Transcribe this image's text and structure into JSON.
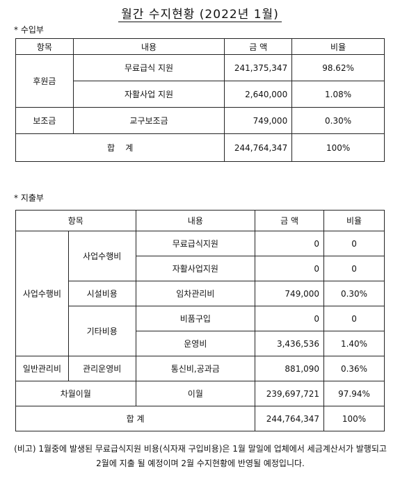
{
  "header": {
    "title": "월간 수지현황 (2022년 1월)"
  },
  "income": {
    "label": "* 수입부",
    "header": [
      "항목",
      "내용",
      "금 액",
      "비율"
    ],
    "rows": [
      [
        "후원금",
        "무료급식 지원",
        "241,375,347",
        "98.62%"
      ],
      [
        "자활사업 지원",
        "2,640,000",
        "1.08%"
      ],
      [
        "보조금",
        "교구보조금",
        "749,000",
        "0.30%"
      ],
      [
        "합    계",
        "244,764,347",
        "100%"
      ]
    ]
  },
  "expense": {
    "label": "* 지출부",
    "header": [
      "항목",
      "내용",
      "금 액",
      "비율"
    ],
    "rows": [
      [
        "사업수행비",
        "사업수행비",
        "무료급식지원",
        "0",
        "0"
      ],
      [
        "자활사업지원",
        "0",
        "0"
      ],
      [
        "시설비용",
        "임차관리비",
        "749,000",
        "0.30%"
      ],
      [
        "기타비용",
        "비품구입",
        "0",
        "0"
      ],
      [
        "운영비",
        "3,436,536",
        "1.40%"
      ],
      [
        "일반관리비",
        "관리운영비",
        "통신비,공과금",
        "881,090",
        "0.36%"
      ],
      [
        "차월이월",
        "이월",
        "239,697,721",
        "97.94%"
      ],
      [
        "합 계",
        "244,764,347",
        "100%"
      ]
    ]
  },
  "note": {
    "text": "(비고) 1월중에 발생된 무료급식지원 비용(식자재 구입비용)은 1월 말일에 업체에서 세금계산서가 발행되고 2월에 지출 될 예정이며 2월 수지현황에 반영될 예정입니다."
  }
}
